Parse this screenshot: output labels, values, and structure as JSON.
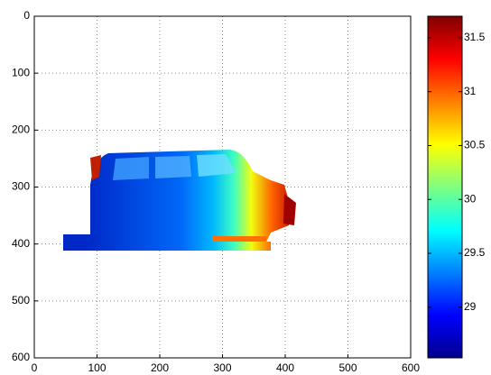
{
  "chart_data": {
    "type": "image",
    "xlim": [
      0,
      600
    ],
    "xticks": [
      0,
      100,
      200,
      300,
      400,
      500,
      600
    ],
    "ylim": [
      0,
      600
    ],
    "yticks": [
      0,
      100,
      200,
      300,
      400,
      500,
      600
    ],
    "y_reversed": true,
    "grid": true,
    "colorbar": {
      "clim": [
        28.53,
        31.7
      ],
      "ticks": [
        29,
        29.5,
        30,
        30.5,
        31,
        31.5
      ]
    }
  }
}
